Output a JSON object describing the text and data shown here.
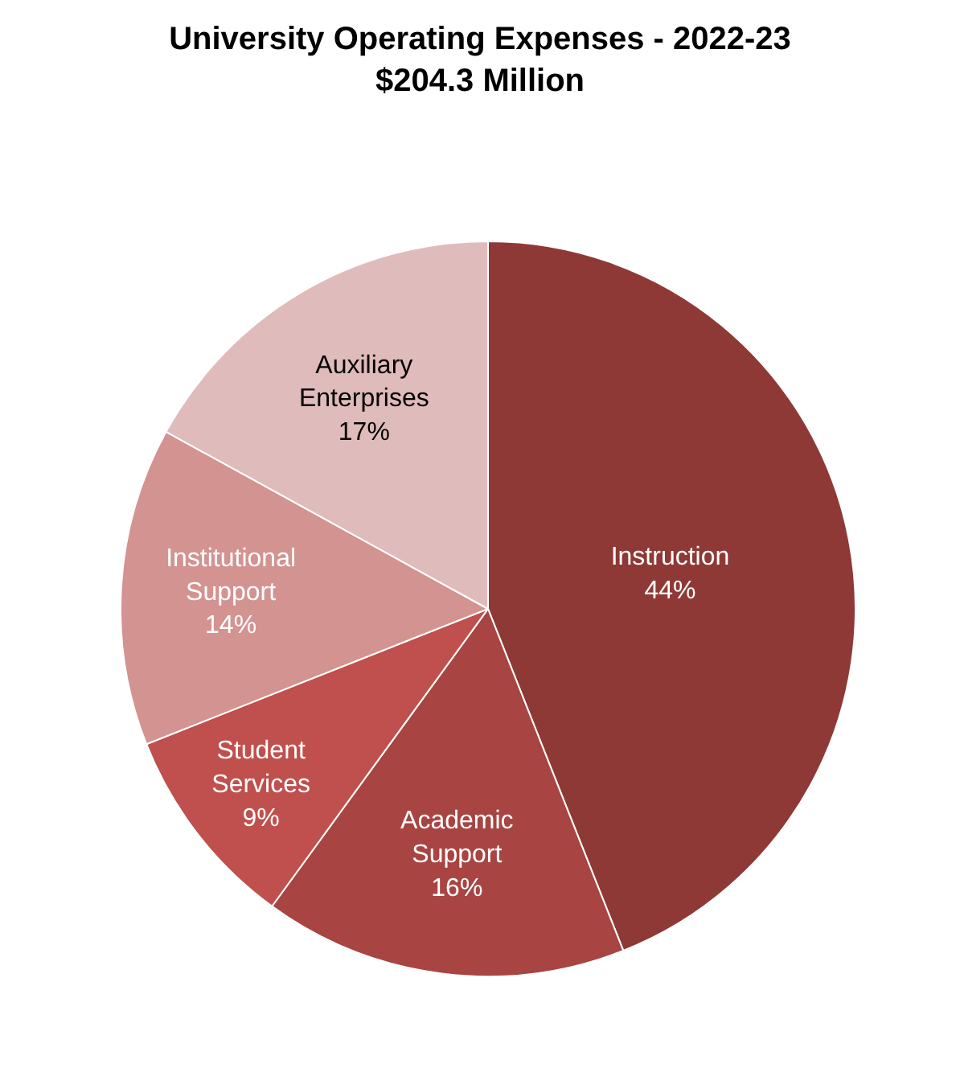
{
  "chart_data": {
    "type": "pie",
    "title": "University Operating Expenses - 2022-23",
    "subtitle": "$204.3 Million",
    "categories": [
      "Instruction",
      "Academic Support",
      "Student Services",
      "Institutional Support",
      "Auxiliary Enterprises"
    ],
    "values": [
      44,
      16,
      9,
      14,
      17
    ],
    "value_labels": [
      "44%",
      "16%",
      "9%",
      "14%",
      "17%"
    ],
    "colors": [
      "#8e3936",
      "#a84442",
      "#c0504d",
      "#d39391",
      "#e0bbbb"
    ],
    "legend": false
  }
}
